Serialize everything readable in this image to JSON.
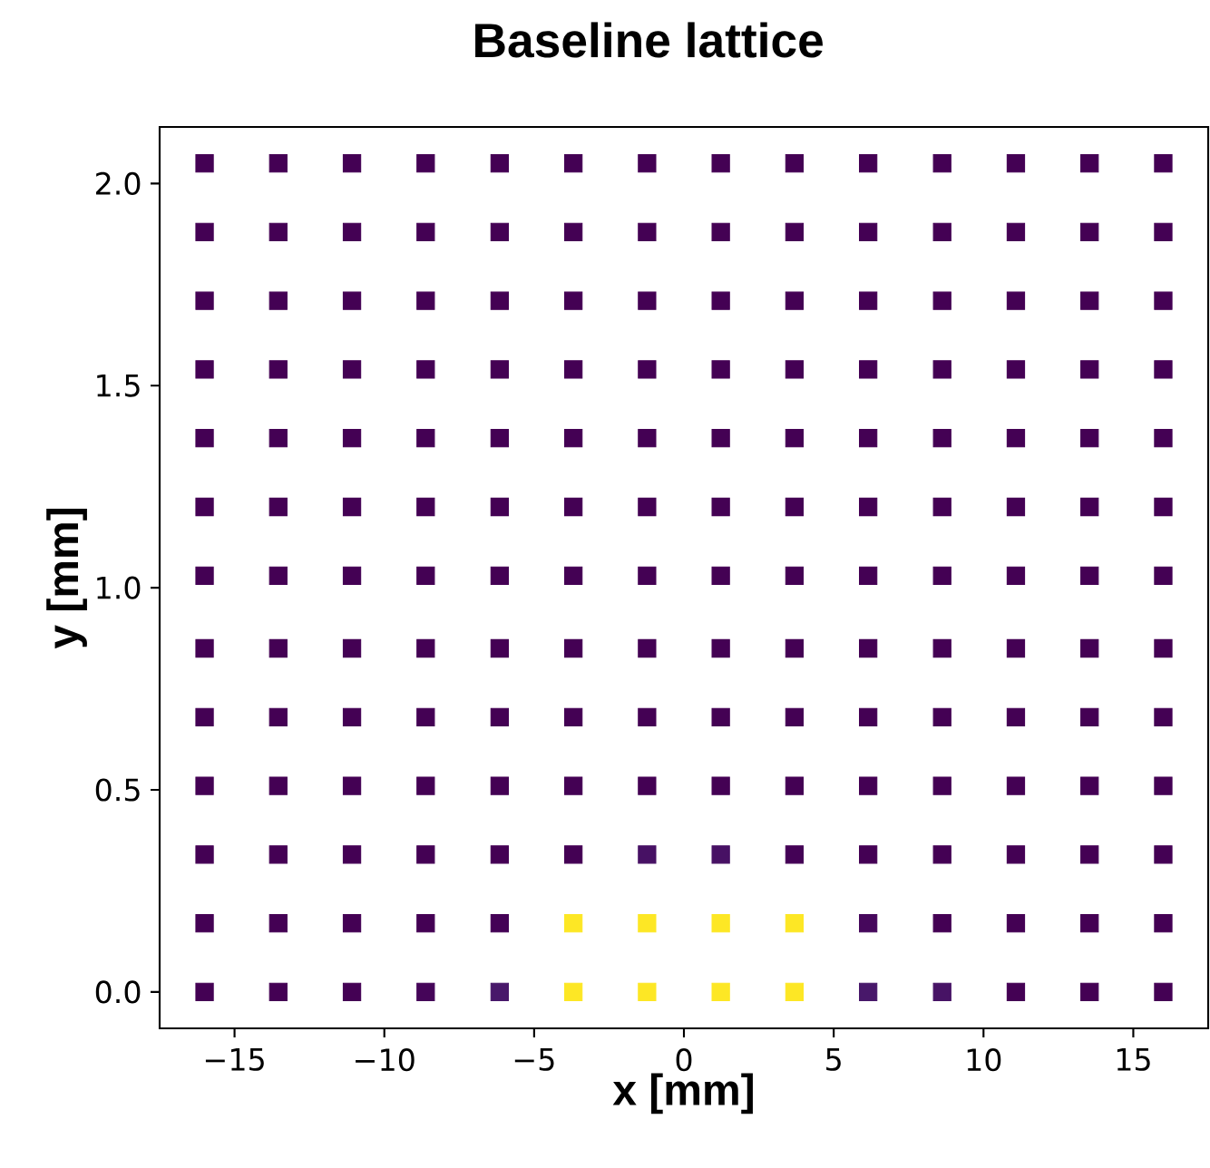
{
  "chart_data": {
    "type": "scatter",
    "title": "Baseline lattice",
    "xlabel": "x [mm]",
    "ylabel": "y [mm]",
    "marker": "square",
    "x": [
      -16,
      -13.54,
      -11.08,
      -8.62,
      -6.15,
      -3.69,
      -1.23,
      1.23,
      3.69,
      6.15,
      8.62,
      11.08,
      13.54,
      16
    ],
    "xlim": [
      -17.5,
      17.5
    ],
    "ylim": [
      -0.09,
      2.14
    ],
    "xticks": [
      {
        "value": -15,
        "label": "−15"
      },
      {
        "value": -10,
        "label": "−10"
      },
      {
        "value": -5,
        "label": "−5"
      },
      0,
      5,
      10,
      15
    ],
    "yticks": [
      {
        "value": 0,
        "label": "0.0"
      },
      0.5,
      {
        "value": 1,
        "label": "1.0"
      },
      1.5,
      {
        "value": 2,
        "label": "2.0"
      }
    ],
    "series": [
      {
        "values": [
          0,
          0,
          0,
          0,
          0,
          0,
          0,
          0,
          0,
          0,
          0,
          0,
          0,
          0
        ],
        "colors": [
          "#440154",
          "#440154",
          "#440154",
          "#450559",
          "#48186a",
          "#fde725",
          "#fde725",
          "#fde725",
          "#fde725",
          "#48186a",
          "#471365",
          "#440154",
          "#440154",
          "#440154"
        ]
      },
      {
        "values": [
          0.17,
          0.17,
          0.17,
          0.17,
          0.17,
          0.17,
          0.17,
          0.17,
          0.17,
          0.17,
          0.17,
          0.17,
          0.17,
          0.17
        ],
        "colors": [
          "#440154",
          "#440154",
          "#440154",
          "#440154",
          "#440256",
          "#fde725",
          "#fde725",
          "#fde725",
          "#fde725",
          "#46085c",
          "#440154",
          "#440154",
          "#440154",
          "#440154"
        ]
      },
      {
        "values": [
          0.34,
          0.34,
          0.34,
          0.34,
          0.34,
          0.34,
          0.34,
          0.34,
          0.34,
          0.34,
          0.34,
          0.34,
          0.34,
          0.34
        ],
        "colors": [
          "#440154",
          "#440154",
          "#440154",
          "#440154",
          "#440154",
          "#440154",
          "#471164",
          "#471164",
          "#440256",
          "#440154",
          "#440154",
          "#440154",
          "#440154",
          "#440154"
        ]
      },
      {
        "values": [
          0.51,
          0.51,
          0.51,
          0.51,
          0.51,
          0.51,
          0.51,
          0.51,
          0.51,
          0.51,
          0.51,
          0.51,
          0.51,
          0.51
        ],
        "color": "#440154"
      },
      {
        "values": [
          0.68,
          0.68,
          0.68,
          0.68,
          0.68,
          0.68,
          0.68,
          0.68,
          0.68,
          0.68,
          0.68,
          0.68,
          0.68,
          0.68
        ],
        "color": "#440154"
      },
      {
        "values": [
          0.85,
          0.85,
          0.85,
          0.85,
          0.85,
          0.85,
          0.85,
          0.85,
          0.85,
          0.85,
          0.85,
          0.85,
          0.85,
          0.85
        ],
        "color": "#440154"
      },
      {
        "values": [
          1.03,
          1.03,
          1.03,
          1.03,
          1.03,
          1.03,
          1.03,
          1.03,
          1.03,
          1.03,
          1.03,
          1.03,
          1.03,
          1.03
        ],
        "color": "#440154"
      },
      {
        "values": [
          1.2,
          1.2,
          1.2,
          1.2,
          1.2,
          1.2,
          1.2,
          1.2,
          1.2,
          1.2,
          1.2,
          1.2,
          1.2,
          1.2
        ],
        "color": "#440154"
      },
      {
        "values": [
          1.37,
          1.37,
          1.37,
          1.37,
          1.37,
          1.37,
          1.37,
          1.37,
          1.37,
          1.37,
          1.37,
          1.37,
          1.37,
          1.37
        ],
        "color": "#440154"
      },
      {
        "values": [
          1.54,
          1.54,
          1.54,
          1.54,
          1.54,
          1.54,
          1.54,
          1.54,
          1.54,
          1.54,
          1.54,
          1.54,
          1.54,
          1.54
        ],
        "color": "#440154"
      },
      {
        "values": [
          1.71,
          1.71,
          1.71,
          1.71,
          1.71,
          1.71,
          1.71,
          1.71,
          1.71,
          1.71,
          1.71,
          1.71,
          1.71,
          1.71
        ],
        "color": "#440154"
      },
      {
        "values": [
          1.88,
          1.88,
          1.88,
          1.88,
          1.88,
          1.88,
          1.88,
          1.88,
          1.88,
          1.88,
          1.88,
          1.88,
          1.88,
          1.88
        ],
        "color": "#440154"
      },
      {
        "values": [
          2.05,
          2.05,
          2.05,
          2.05,
          2.05,
          2.05,
          2.05,
          2.05,
          2.05,
          2.05,
          2.05,
          2.05,
          2.05,
          2.05
        ],
        "color": "#440154"
      }
    ]
  }
}
